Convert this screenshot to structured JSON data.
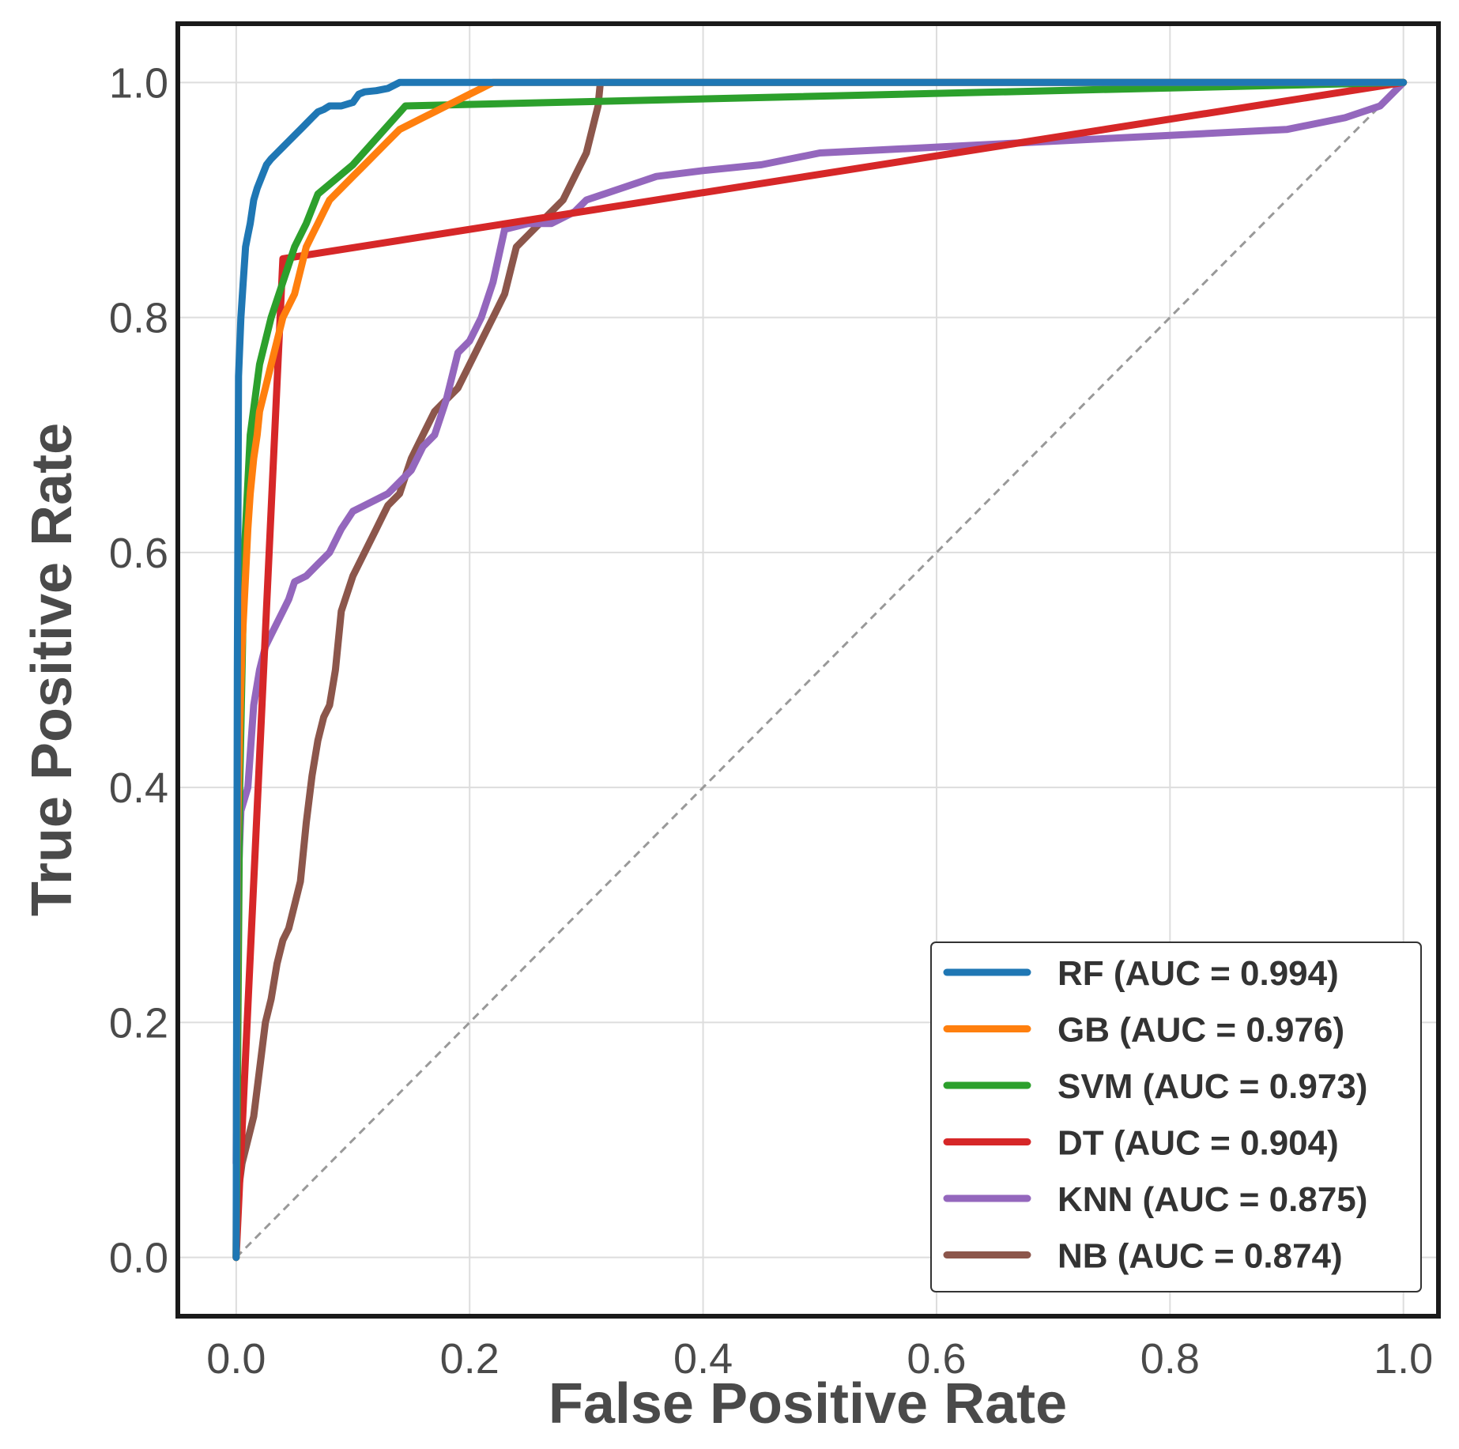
{
  "chart_data": {
    "type": "line",
    "title": "",
    "xlabel": "False Positive Rate",
    "ylabel": "True Positive Rate",
    "xlim": [
      -0.05,
      1.03
    ],
    "ylim": [
      -0.05,
      1.05
    ],
    "xticks": [
      "0.0",
      "0.2",
      "0.4",
      "0.6",
      "0.8",
      "1.0"
    ],
    "yticks": [
      "0.0",
      "0.2",
      "0.4",
      "0.6",
      "0.8",
      "1.0"
    ],
    "grid": true,
    "legend_position": "bottom-right",
    "chance_line": {
      "x": [
        0,
        1
      ],
      "y": [
        0,
        1
      ],
      "color": "#999999",
      "style": "dashed"
    },
    "series": [
      {
        "name": "RF",
        "label": "RF (AUC = 0.994)",
        "color": "#1f77b4",
        "x": [
          0,
          0.001,
          0.002,
          0.004,
          0.006,
          0.008,
          0.01,
          0.012,
          0.015,
          0.018,
          0.022,
          0.026,
          0.03,
          0.035,
          0.04,
          0.045,
          0.05,
          0.055,
          0.06,
          0.065,
          0.07,
          0.075,
          0.08,
          0.09,
          0.1,
          0.105,
          0.11,
          0.12,
          0.13,
          0.14,
          0.15,
          0.17,
          0.2,
          0.22,
          1.0
        ],
        "y": [
          0,
          0.5,
          0.75,
          0.8,
          0.83,
          0.86,
          0.87,
          0.88,
          0.9,
          0.91,
          0.92,
          0.93,
          0.935,
          0.94,
          0.945,
          0.95,
          0.955,
          0.96,
          0.965,
          0.97,
          0.975,
          0.977,
          0.98,
          0.98,
          0.983,
          0.99,
          0.992,
          0.993,
          0.995,
          1.0,
          1.0,
          1.0,
          1.0,
          1.0,
          1.0
        ]
      },
      {
        "name": "GB",
        "label": "GB (AUC = 0.976)",
        "color": "#ff7f0e",
        "x": [
          0,
          0.001,
          0.003,
          0.005,
          0.008,
          0.01,
          0.012,
          0.015,
          0.018,
          0.02,
          0.025,
          0.03,
          0.035,
          0.04,
          0.05,
          0.055,
          0.06,
          0.065,
          0.07,
          0.075,
          0.08,
          0.09,
          0.1,
          0.11,
          0.12,
          0.13,
          0.14,
          0.15,
          0.16,
          0.17,
          0.18,
          0.19,
          0.2,
          0.21,
          0.22,
          0.23,
          1.0
        ],
        "y": [
          0,
          0.35,
          0.45,
          0.52,
          0.58,
          0.62,
          0.65,
          0.68,
          0.7,
          0.72,
          0.74,
          0.76,
          0.78,
          0.8,
          0.82,
          0.84,
          0.86,
          0.87,
          0.88,
          0.89,
          0.9,
          0.91,
          0.92,
          0.93,
          0.94,
          0.95,
          0.96,
          0.965,
          0.97,
          0.975,
          0.98,
          0.985,
          0.99,
          0.995,
          1.0,
          1.0,
          1.0
        ]
      },
      {
        "name": "SVM",
        "label": "SVM (AUC = 0.973)",
        "color": "#2ca02c",
        "x": [
          0,
          0.003,
          0.007,
          0.012,
          0.02,
          0.03,
          0.04,
          0.05,
          0.06,
          0.07,
          0.1,
          0.145,
          1.0
        ],
        "y": [
          0,
          0.4,
          0.6,
          0.7,
          0.76,
          0.8,
          0.83,
          0.86,
          0.88,
          0.905,
          0.93,
          0.98,
          1.0
        ]
      },
      {
        "name": "DT",
        "label": "DT (AUC = 0.904)",
        "color": "#d62728",
        "x": [
          0,
          0.04,
          1.0
        ],
        "y": [
          0,
          0.85,
          1.0
        ]
      },
      {
        "name": "KNN",
        "label": "KNN (AUC = 0.875)",
        "color": "#9467bd",
        "x": [
          0,
          0.001,
          0.004,
          0.01,
          0.015,
          0.02,
          0.025,
          0.03,
          0.04,
          0.045,
          0.05,
          0.06,
          0.07,
          0.08,
          0.09,
          0.1,
          0.11,
          0.13,
          0.14,
          0.15,
          0.16,
          0.17,
          0.18,
          0.19,
          0.2,
          0.21,
          0.22,
          0.23,
          0.25,
          0.27,
          0.29,
          0.3,
          0.33,
          0.36,
          0.4,
          0.45,
          0.5,
          0.6,
          0.7,
          0.8,
          0.9,
          0.95,
          0.98,
          1.0
        ],
        "y": [
          0.08,
          0.3,
          0.38,
          0.4,
          0.47,
          0.5,
          0.52,
          0.53,
          0.55,
          0.56,
          0.575,
          0.58,
          0.59,
          0.6,
          0.62,
          0.635,
          0.64,
          0.65,
          0.66,
          0.67,
          0.69,
          0.7,
          0.73,
          0.77,
          0.78,
          0.8,
          0.83,
          0.875,
          0.88,
          0.88,
          0.89,
          0.9,
          0.91,
          0.92,
          0.925,
          0.93,
          0.94,
          0.945,
          0.95,
          0.955,
          0.96,
          0.97,
          0.98,
          1.0
        ]
      },
      {
        "name": "NB",
        "label": "NB (AUC = 0.874)",
        "color": "#8c564b",
        "x": [
          0,
          0.001,
          0.005,
          0.01,
          0.015,
          0.02,
          0.025,
          0.03,
          0.035,
          0.04,
          0.045,
          0.05,
          0.055,
          0.06,
          0.065,
          0.07,
          0.075,
          0.08,
          0.085,
          0.09,
          0.1,
          0.11,
          0.12,
          0.125,
          0.13,
          0.14,
          0.15,
          0.16,
          0.17,
          0.18,
          0.19,
          0.2,
          0.21,
          0.22,
          0.23,
          0.24,
          0.25,
          0.26,
          0.27,
          0.28,
          0.29,
          0.3,
          0.31,
          0.312,
          0.35,
          0.5,
          0.8,
          1.0
        ],
        "y": [
          0,
          0.05,
          0.08,
          0.1,
          0.12,
          0.16,
          0.2,
          0.22,
          0.25,
          0.27,
          0.28,
          0.3,
          0.32,
          0.37,
          0.41,
          0.44,
          0.46,
          0.47,
          0.5,
          0.55,
          0.58,
          0.6,
          0.62,
          0.63,
          0.64,
          0.65,
          0.68,
          0.7,
          0.72,
          0.73,
          0.74,
          0.76,
          0.78,
          0.8,
          0.82,
          0.86,
          0.87,
          0.88,
          0.89,
          0.9,
          0.92,
          0.94,
          0.98,
          1.0,
          1.0,
          1.0,
          1.0,
          1.0
        ]
      }
    ]
  }
}
